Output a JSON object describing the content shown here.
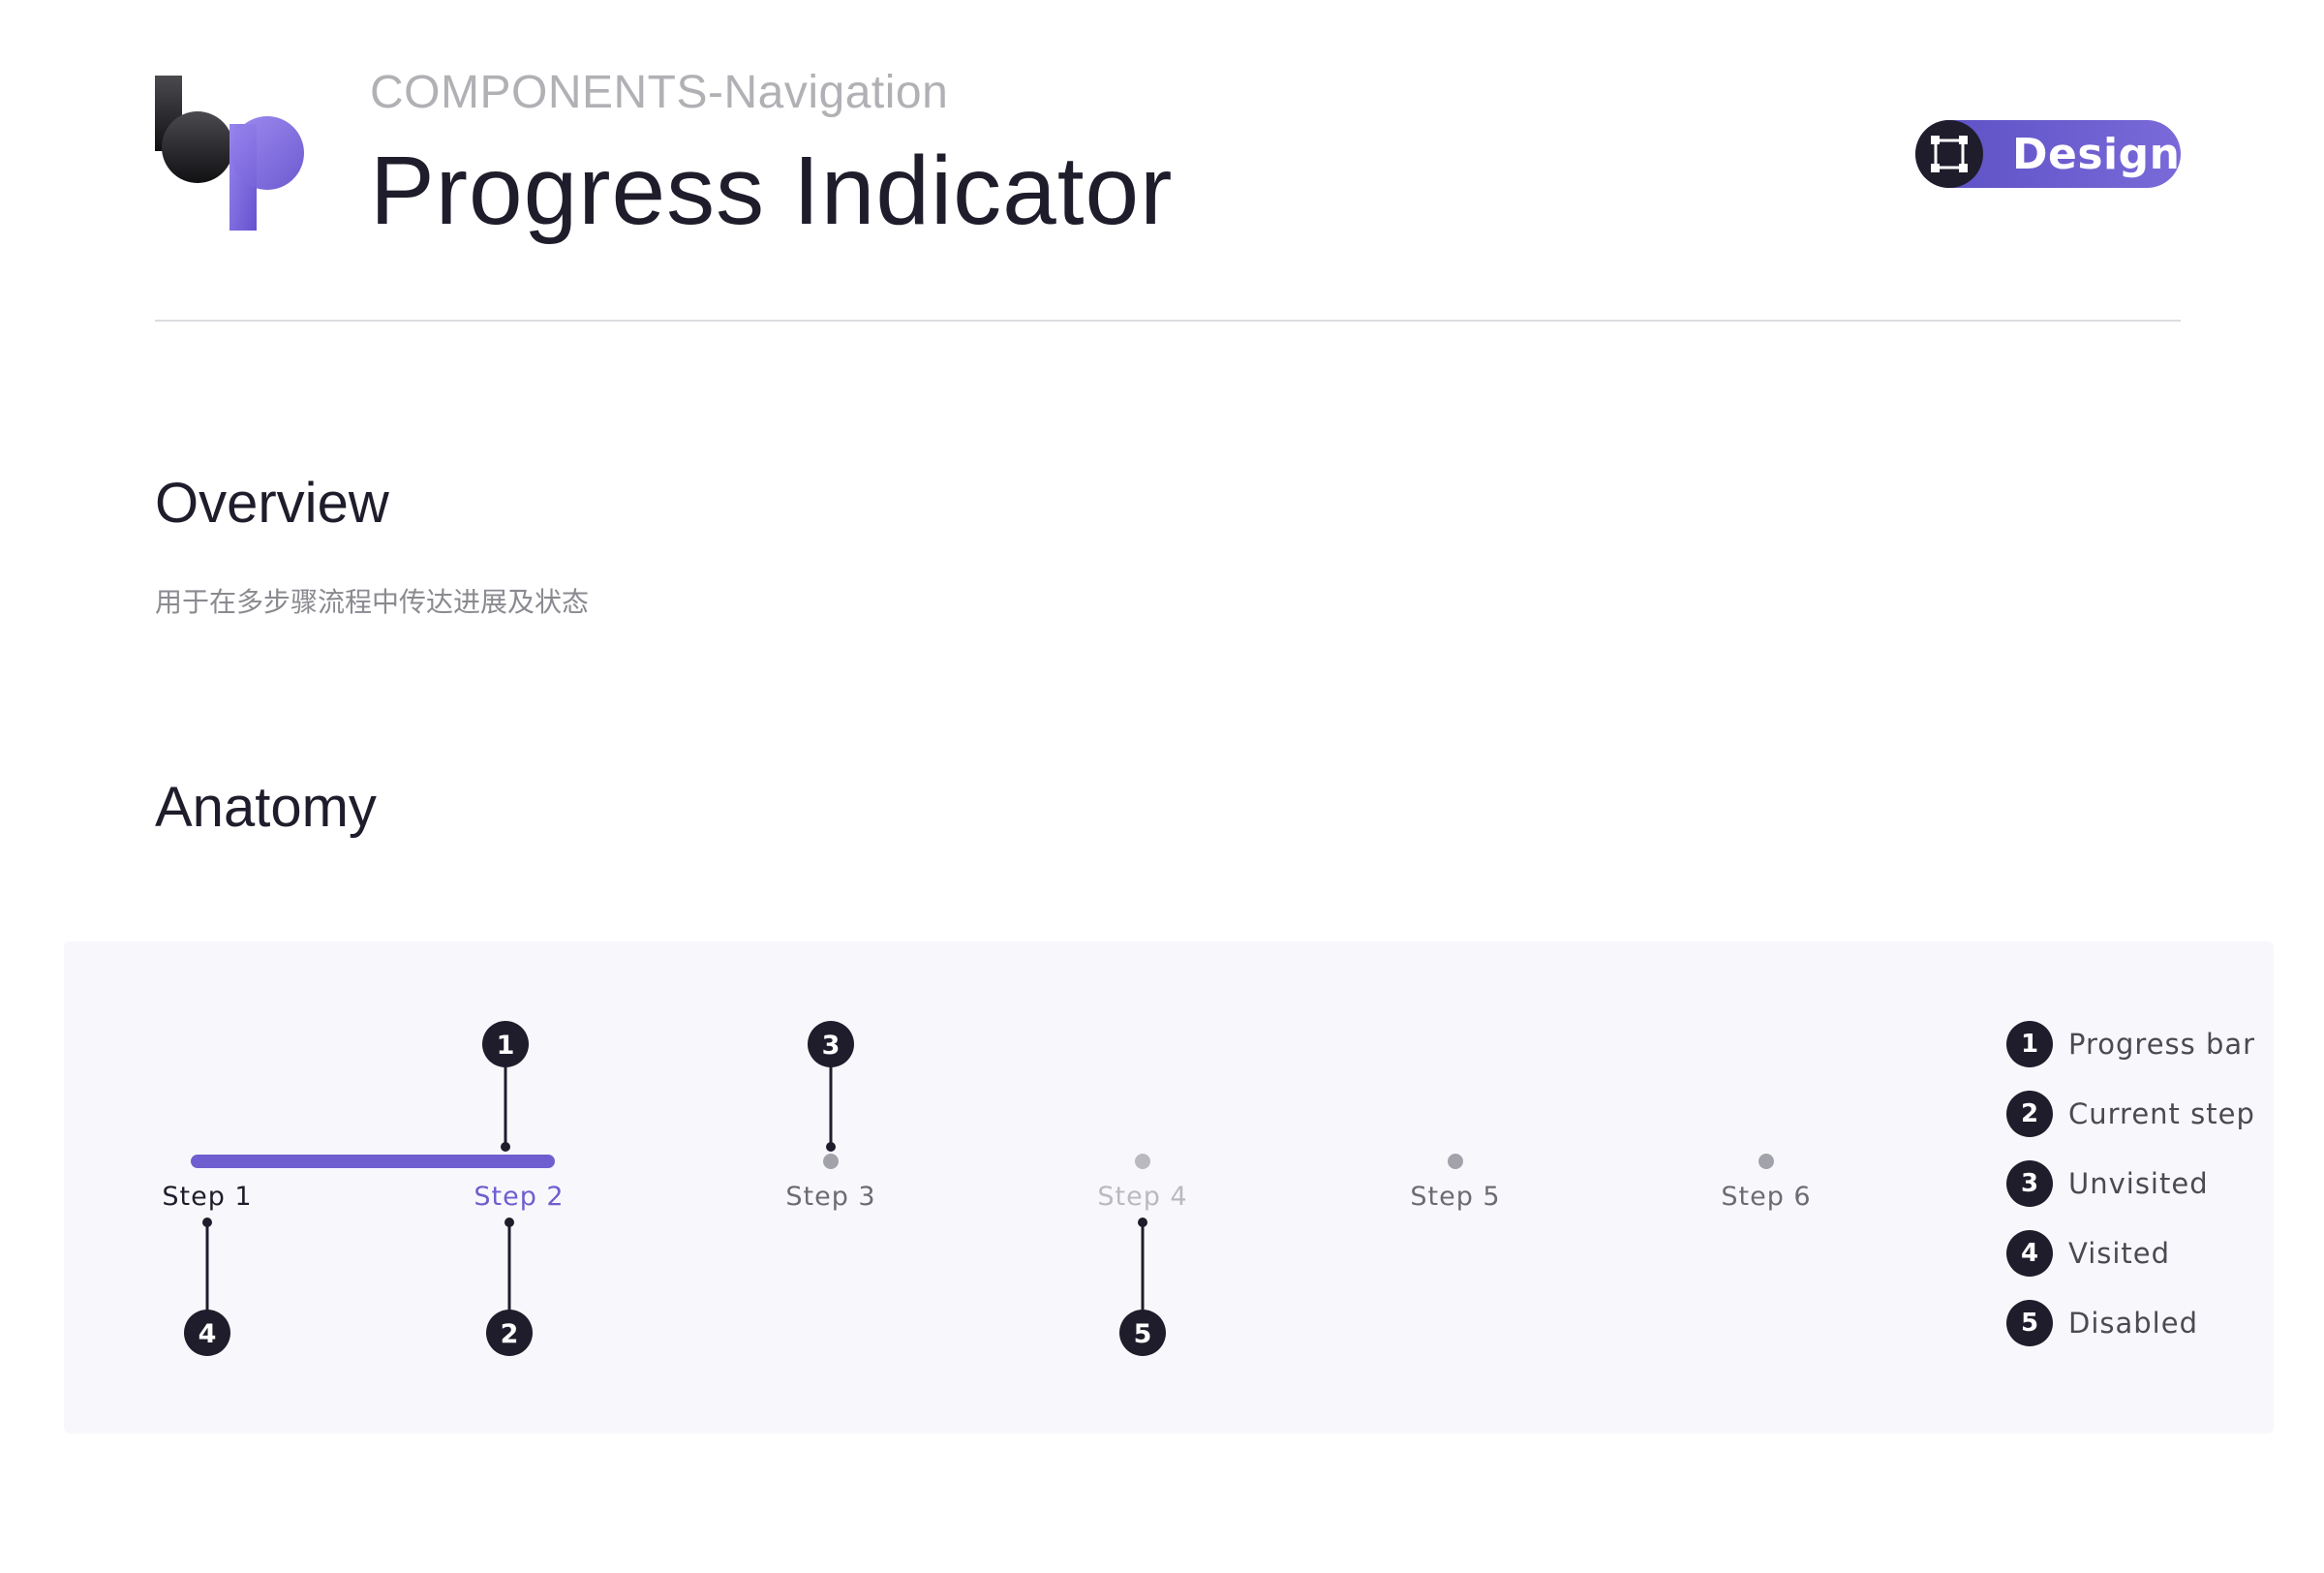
{
  "header": {
    "eyebrow": "COMPONENTS-Navigation",
    "title": "Progress Indicator",
    "badge": {
      "label": "Design",
      "icon": "frame-icon"
    }
  },
  "overview": {
    "title": "Overview",
    "description": "用于在多步骤流程中传达进展及状态"
  },
  "anatomy": {
    "title": "Anatomy",
    "progress": {
      "completed_to_step": 2,
      "color": "#6e5ecf"
    },
    "steps": [
      {
        "label": "Step 1",
        "state": "visited"
      },
      {
        "label": "Step 2",
        "state": "current"
      },
      {
        "label": "Step 3",
        "state": "unvisited"
      },
      {
        "label": "Step 4",
        "state": "disabled"
      },
      {
        "label": "Step 5",
        "state": "unvisited"
      },
      {
        "label": "Step 6",
        "state": "unvisited"
      }
    ],
    "callouts": [
      "1",
      "2",
      "3",
      "4",
      "5"
    ],
    "legend": [
      {
        "num": "1",
        "label": "Progress bar"
      },
      {
        "num": "2",
        "label": "Current step"
      },
      {
        "num": "3",
        "label": "Unvisited"
      },
      {
        "num": "4",
        "label": "Visited"
      },
      {
        "num": "5",
        "label": "Disabled"
      }
    ],
    "colors": {
      "visited": "#1f1d2b",
      "current": "#6e5ecf",
      "unvisited": "#6b6b73",
      "disabled": "#b9b9bf",
      "marker": "#1f1d2b"
    }
  }
}
